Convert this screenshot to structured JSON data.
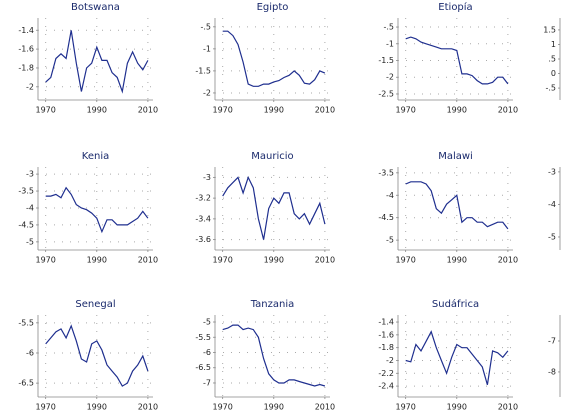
{
  "chart_data": [
    {
      "type": "line",
      "title": "Botswana",
      "color": "#1f2f8f",
      "grid": true,
      "xlim": [
        1967,
        2012
      ],
      "ylim": [
        -2.14,
        -1.27
      ],
      "xticks": [
        1970,
        1990,
        2010
      ],
      "yticks": [
        -1.4,
        -1.6,
        -1.8,
        -2
      ],
      "x": [
        1970,
        1972,
        1974,
        1976,
        1978,
        1980,
        1982,
        1984,
        1986,
        1988,
        1990,
        1992,
        1994,
        1996,
        1998,
        2000,
        2002,
        2004,
        2006,
        2008,
        2010
      ],
      "values": [
        -1.95,
        -1.9,
        -1.7,
        -1.65,
        -1.7,
        -1.4,
        -1.75,
        -2.05,
        -1.8,
        -1.75,
        -1.58,
        -1.72,
        -1.72,
        -1.85,
        -1.9,
        -2.05,
        -1.75,
        -1.63,
        -1.75,
        -1.82,
        -1.72
      ]
    },
    {
      "type": "line",
      "title": "Egipto",
      "color": "#1f2f8f",
      "grid": true,
      "xlim": [
        1967,
        2012
      ],
      "ylim": [
        -2.16,
        -0.3
      ],
      "xticks": [
        1970,
        1990,
        2010
      ],
      "yticks": [
        {
          "value": -0.5,
          "label": "-.5"
        },
        -1,
        -1.5,
        -2
      ],
      "x": [
        1970,
        1972,
        1974,
        1976,
        1978,
        1980,
        1982,
        1984,
        1986,
        1988,
        1990,
        1992,
        1994,
        1996,
        1998,
        2000,
        2002,
        2004,
        2006,
        2008,
        2010
      ],
      "values": [
        -0.6,
        -0.6,
        -0.7,
        -0.9,
        -1.3,
        -1.8,
        -1.85,
        -1.85,
        -1.8,
        -1.8,
        -1.75,
        -1.72,
        -1.65,
        -1.6,
        -1.5,
        -1.6,
        -1.78,
        -1.8,
        -1.7,
        -1.5,
        -1.55
      ]
    },
    {
      "type": "line",
      "title": "Etiopía",
      "color": "#1f2f8f",
      "grid": true,
      "xlim": [
        1967,
        2012
      ],
      "ylim": [
        -2.68,
        -0.23
      ],
      "xticks": [
        1970,
        1990,
        2010
      ],
      "yticks": [
        {
          "value": -0.5,
          "label": "-.5"
        },
        -1,
        -1.5,
        -2,
        -2.5
      ],
      "x": [
        1970,
        1972,
        1974,
        1976,
        1978,
        1980,
        1982,
        1984,
        1986,
        1988,
        1990,
        1992,
        1994,
        1996,
        1998,
        2000,
        2002,
        2004,
        2006,
        2008,
        2010
      ],
      "values": [
        -0.85,
        -0.8,
        -0.85,
        -0.95,
        -1,
        -1.05,
        -1.1,
        -1.15,
        -1.15,
        -1.15,
        -1.2,
        -1.9,
        -1.9,
        -1.95,
        -2.1,
        -2.2,
        -2.2,
        -2.15,
        -2,
        -2,
        -2.2
      ]
    },
    {
      "type": "line",
      "ylim": [
        -0.91,
        1.91
      ],
      "yticks": [
        1.5,
        1,
        {
          "value": 0.5,
          "label": ".5"
        },
        0,
        {
          "value": -0.5,
          "label": "-.5"
        }
      ]
    },
    {
      "type": "line",
      "title": "Kenia",
      "color": "#1f2f8f",
      "grid": true,
      "xlim": [
        1967,
        2012
      ],
      "ylim": [
        -5.24,
        -2.79
      ],
      "xticks": [
        1970,
        1990,
        2010
      ],
      "yticks": [
        -3,
        -3.5,
        -4,
        -4.5,
        -5
      ],
      "x": [
        1970,
        1972,
        1974,
        1976,
        1978,
        1980,
        1982,
        1984,
        1986,
        1988,
        1990,
        1992,
        1994,
        1996,
        1998,
        2000,
        2002,
        2004,
        2006,
        2008,
        2010
      ],
      "values": [
        -3.65,
        -3.65,
        -3.6,
        -3.7,
        -3.4,
        -3.6,
        -3.9,
        -4.0,
        -4.05,
        -4.15,
        -4.3,
        -4.7,
        -4.35,
        -4.35,
        -4.5,
        -4.5,
        -4.5,
        -4.4,
        -4.3,
        -4.1,
        -4.3
      ]
    },
    {
      "type": "line",
      "title": "Mauricio",
      "color": "#1f2f8f",
      "grid": true,
      "xlim": [
        1967,
        2012
      ],
      "ylim": [
        -3.7,
        -2.9
      ],
      "xticks": [
        1970,
        1990,
        2010
      ],
      "yticks": [
        -3,
        -3.2,
        -3.4,
        -3.6
      ],
      "x": [
        1970,
        1972,
        1974,
        1976,
        1978,
        1980,
        1982,
        1984,
        1986,
        1988,
        1990,
        1992,
        1994,
        1996,
        1998,
        2000,
        2002,
        2004,
        2006,
        2008,
        2010
      ],
      "values": [
        -3.18,
        -3.1,
        -3.05,
        -3.0,
        -3.15,
        -3.0,
        -3.1,
        -3.4,
        -3.6,
        -3.3,
        -3.2,
        -3.25,
        -3.15,
        -3.15,
        -3.35,
        -3.4,
        -3.35,
        -3.45,
        -3.35,
        -3.25,
        -3.45
      ]
    },
    {
      "type": "line",
      "title": "Malawi",
      "color": "#1f2f8f",
      "grid": true,
      "xlim": [
        1967,
        2012
      ],
      "ylim": [
        -5.22,
        -3.37
      ],
      "xticks": [
        1970,
        1990,
        2010
      ],
      "yticks": [
        -3.5,
        -4,
        -4.5,
        -5
      ],
      "x": [
        1970,
        1972,
        1974,
        1976,
        1978,
        1980,
        1982,
        1984,
        1986,
        1988,
        1990,
        1992,
        1994,
        1996,
        1998,
        2000,
        2002,
        2004,
        2006,
        2008,
        2010
      ],
      "values": [
        -3.75,
        -3.7,
        -3.7,
        -3.7,
        -3.75,
        -3.9,
        -4.3,
        -4.4,
        -4.2,
        -4.1,
        -4.0,
        -4.6,
        -4.5,
        -4.5,
        -4.6,
        -4.6,
        -4.7,
        -4.65,
        -4.6,
        -4.6,
        -4.75
      ]
    },
    {
      "type": "line",
      "ylim": [
        -5.4,
        -2.85
      ],
      "yticks": [
        -3,
        -4,
        -5
      ]
    },
    {
      "type": "line",
      "title": "Senegal",
      "color": "#1f2f8f",
      "grid": true,
      "xlim": [
        1967,
        2012
      ],
      "ylim": [
        -6.73,
        -5.37
      ],
      "xticks": [
        1970,
        1990,
        2010
      ],
      "yticks": [
        -5.5,
        -6,
        -6.5
      ],
      "x": [
        1970,
        1972,
        1974,
        1976,
        1978,
        1980,
        1982,
        1984,
        1986,
        1988,
        1990,
        1992,
        1994,
        1996,
        1998,
        2000,
        2002,
        2004,
        2006,
        2008,
        2010
      ],
      "values": [
        -5.85,
        -5.75,
        -5.65,
        -5.6,
        -5.75,
        -5.55,
        -5.8,
        -6.1,
        -6.15,
        -5.85,
        -5.8,
        -5.95,
        -6.2,
        -6.3,
        -6.4,
        -6.55,
        -6.5,
        -6.3,
        -6.2,
        -6.05,
        -6.3
      ]
    },
    {
      "type": "line",
      "title": "Tanzania",
      "color": "#1f2f8f",
      "grid": true,
      "xlim": [
        1967,
        2012
      ],
      "ylim": [
        -7.46,
        -4.77
      ],
      "xticks": [
        1970,
        1990,
        2010
      ],
      "yticks": [
        -5,
        -5.5,
        -6,
        -6.5,
        -7
      ],
      "x": [
        1970,
        1972,
        1974,
        1976,
        1978,
        1980,
        1982,
        1984,
        1986,
        1988,
        1990,
        1992,
        1994,
        1996,
        1998,
        2000,
        2002,
        2004,
        2006,
        2008,
        2010
      ],
      "values": [
        -5.25,
        -5.2,
        -5.1,
        -5.1,
        -5.25,
        -5.2,
        -5.25,
        -5.5,
        -6.2,
        -6.7,
        -6.9,
        -7.0,
        -7.0,
        -6.9,
        -6.9,
        -6.95,
        -7.0,
        -7.05,
        -7.1,
        -7.05,
        -7.1
      ]
    },
    {
      "type": "line",
      "title": "Sudáfrica",
      "color": "#1f2f8f",
      "grid": true,
      "xlim": [
        1967,
        2012
      ],
      "ylim": [
        -2.57,
        -1.29
      ],
      "xticks": [
        1970,
        1990,
        2010
      ],
      "yticks": [
        -1.4,
        -1.6,
        -1.8,
        -2,
        -2.2,
        -2.4
      ],
      "x": [
        1970,
        1972,
        1974,
        1976,
        1978,
        1980,
        1982,
        1984,
        1986,
        1988,
        1990,
        1992,
        1994,
        1996,
        1998,
        2000,
        2002,
        2004,
        2006,
        2008,
        2010
      ],
      "values": [
        -2.0,
        -2.02,
        -1.75,
        -1.85,
        -1.7,
        -1.55,
        -1.8,
        -2.0,
        -2.2,
        -1.95,
        -1.75,
        -1.8,
        -1.8,
        -1.9,
        -2.0,
        -2.1,
        -2.38,
        -1.85,
        -1.88,
        -1.95,
        -1.85
      ]
    },
    {
      "type": "line",
      "ylim": [
        -8.81,
        -6.16
      ],
      "yticks": [
        -7,
        -8
      ]
    }
  ]
}
